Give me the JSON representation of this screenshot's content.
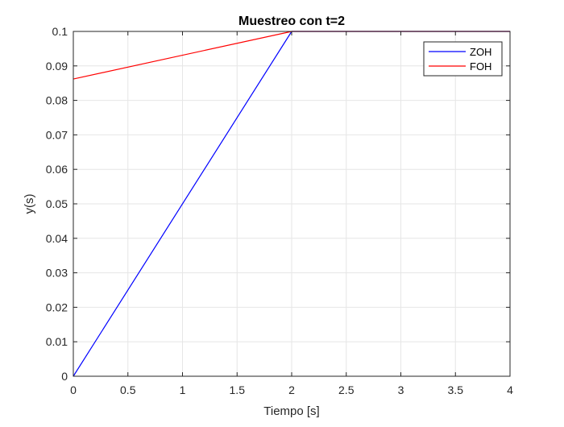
{
  "chart_data": {
    "type": "line",
    "title": "Muestreo con t=2",
    "xlabel": "Tiempo [s]",
    "ylabel": "y(s)",
    "xlim": [
      0,
      4
    ],
    "ylim": [
      0,
      0.1
    ],
    "x_ticks": [
      0,
      0.5,
      1,
      1.5,
      2,
      2.5,
      3,
      3.5,
      4
    ],
    "x_tick_labels": [
      "0",
      "0.5",
      "1",
      "1.5",
      "2",
      "2.5",
      "3",
      "3.5",
      "4"
    ],
    "y_ticks": [
      0,
      0.01,
      0.02,
      0.03,
      0.04,
      0.05,
      0.06,
      0.07,
      0.08,
      0.09,
      0.1
    ],
    "y_tick_labels": [
      "0",
      "0.01",
      "0.02",
      "0.03",
      "0.04",
      "0.05",
      "0.06",
      "0.07",
      "0.08",
      "0.09",
      "0.1"
    ],
    "grid": true,
    "legend_position": "top-right",
    "series": [
      {
        "name": "ZOH",
        "color": "#0000ff",
        "x": [
          0,
          2,
          4
        ],
        "y": [
          0,
          0.1,
          0.1
        ]
      },
      {
        "name": "FOH",
        "color": "#ff0000",
        "x": [
          0,
          2,
          4
        ],
        "y": [
          0.0862,
          0.1,
          0.1
        ]
      }
    ]
  }
}
